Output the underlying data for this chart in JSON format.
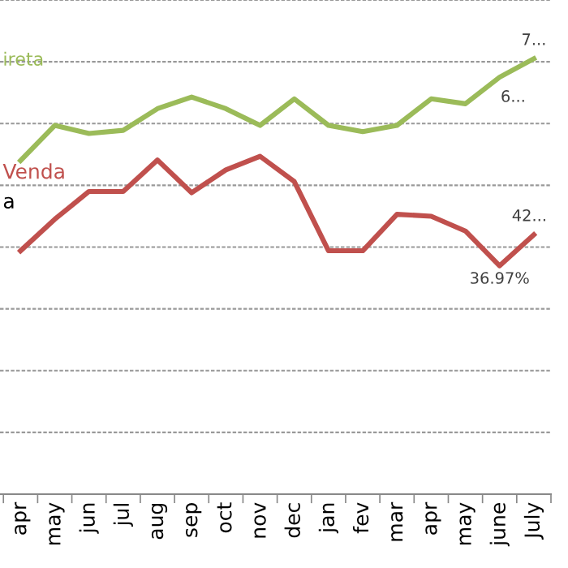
{
  "chart_data": {
    "type": "line",
    "ylim": [
      0,
      80
    ],
    "yticks": [
      {
        "value": 0,
        "label": null
      },
      {
        "value": 10,
        "label": null
      },
      {
        "value": 20,
        "label": null
      },
      {
        "value": 30,
        "label": null
      },
      {
        "value": 40,
        "label": null
      },
      {
        "value": 50,
        "label": null
      },
      {
        "value": 60,
        "label": null
      },
      {
        "value": 70,
        "label": null
      },
      {
        "value": 80,
        "label": null
      }
    ],
    "grid": "y",
    "legend": false,
    "marker": "none",
    "line_style": "solid",
    "categories": [
      "apr",
      "may",
      "jun",
      "jul",
      "aug",
      "sep",
      "oct",
      "nov",
      "dec",
      "jan",
      "fev",
      "mar",
      "apr",
      "may",
      "june",
      "July"
    ],
    "series": [
      {
        "name": "ireta",
        "color": "#9bbb59",
        "values": [
          54.0,
          59.7,
          58.4,
          58.9,
          62.4,
          64.3,
          62.4,
          59.7,
          64.0,
          59.7,
          58.7,
          59.7,
          64.0,
          63.2,
          67.5,
          70.5
        ],
        "value_labels": [
          null,
          null,
          null,
          null,
          null,
          null,
          null,
          null,
          null,
          null,
          null,
          null,
          null,
          null,
          "6...",
          "7..."
        ]
      },
      {
        "name": "Venda",
        "color": "#c0504d",
        "values": [
          39.4,
          44.5,
          49.0,
          49.0,
          54.1,
          48.8,
          52.5,
          54.7,
          50.6,
          39.4,
          39.4,
          45.3,
          45.0,
          42.6,
          36.97,
          42.0
        ],
        "value_labels": [
          null,
          null,
          null,
          null,
          null,
          null,
          null,
          null,
          null,
          null,
          null,
          null,
          null,
          null,
          "36.97%",
          "42..."
        ]
      }
    ],
    "annotations": [
      "a"
    ]
  }
}
